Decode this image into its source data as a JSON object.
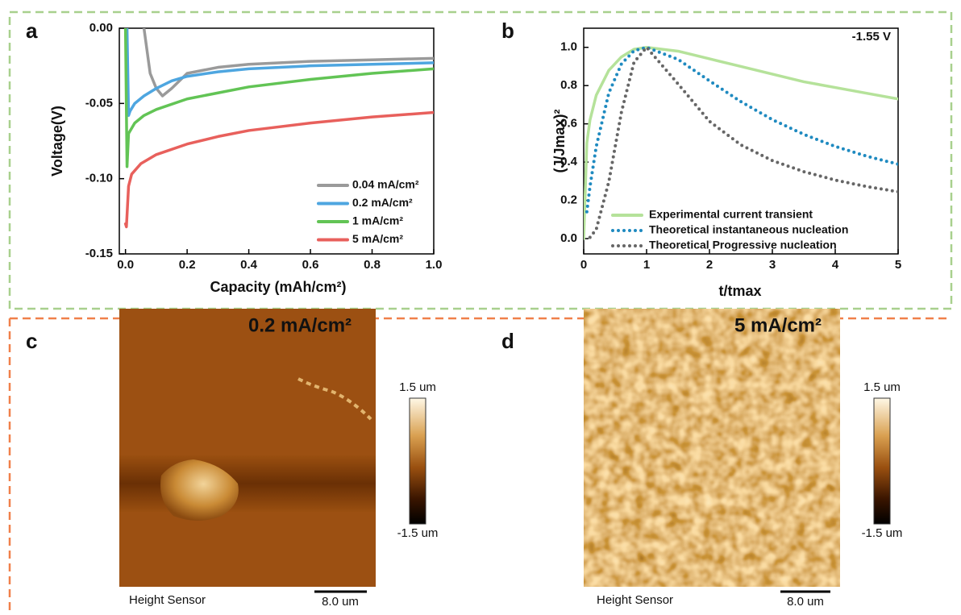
{
  "chart_data": [
    {
      "type": "line",
      "panel_label": "a",
      "x_label": "Capacity (mAh/cm²)",
      "y_label": "Voltage(V)",
      "xlim": [
        -0.02,
        1.0
      ],
      "ylim": [
        -0.15,
        0
      ],
      "xticks": [
        {
          "value": 0,
          "label": "0.0"
        },
        0.2,
        0.4,
        0.6,
        0.8,
        {
          "value": 1,
          "label": "1.0"
        }
      ],
      "yticks": [
        {
          "value": 0,
          "label": "0.00"
        },
        {
          "value": -0.05,
          "label": "-0.05"
        },
        {
          "value": -0.1,
          "label": "-0.10"
        },
        {
          "value": -0.15,
          "label": "-0.15"
        }
      ],
      "legend": "lower right",
      "series": [
        {
          "name": "0.04 mA/cm²",
          "color": "#9a9a9a",
          "style": "solid",
          "x": [
            0.06,
            0.08,
            0.1,
            0.12,
            0.15,
            0.2,
            0.3,
            0.4,
            0.6,
            0.8,
            1.0
          ],
          "values": [
            0,
            -0.03,
            -0.04,
            -0.045,
            -0.04,
            -0.03,
            -0.026,
            -0.024,
            -0.022,
            -0.021,
            -0.02
          ]
        },
        {
          "name": "0.2 mA/cm²",
          "color": "#4ea6e0",
          "style": "solid",
          "x": [
            0.005,
            0.01,
            0.015,
            0.03,
            0.06,
            0.1,
            0.15,
            0.2,
            0.3,
            0.4,
            0.6,
            0.8,
            1.0
          ],
          "values": [
            0,
            -0.058,
            -0.055,
            -0.05,
            -0.045,
            -0.04,
            -0.035,
            -0.032,
            -0.029,
            -0.027,
            -0.025,
            -0.024,
            -0.023
          ]
        },
        {
          "name": "1 mA/cm²",
          "color": "#62c455",
          "style": "solid",
          "x": [
            0,
            0.005,
            0.01,
            0.03,
            0.06,
            0.1,
            0.2,
            0.3,
            0.4,
            0.6,
            0.8,
            1.0
          ],
          "values": [
            0,
            -0.092,
            -0.07,
            -0.063,
            -0.058,
            -0.054,
            -0.047,
            -0.043,
            -0.039,
            -0.034,
            -0.03,
            -0.027
          ]
        },
        {
          "name": "5 mA/cm²",
          "color": "#e8605c",
          "style": "solid",
          "x": [
            0,
            0.003,
            0.01,
            0.02,
            0.05,
            0.1,
            0.2,
            0.3,
            0.4,
            0.6,
            0.8,
            1.0
          ],
          "values": [
            -0.13,
            -0.132,
            -0.105,
            -0.097,
            -0.09,
            -0.084,
            -0.077,
            -0.072,
            -0.068,
            -0.063,
            -0.059,
            -0.056
          ]
        }
      ]
    },
    {
      "type": "line",
      "panel_label": "b",
      "x_label": "t/tmax",
      "y_label": "(J/Jmax)²",
      "annotation": "-1.55 V",
      "xlim": [
        0,
        5
      ],
      "ylim": [
        -0.08,
        1.1
      ],
      "xticks": [
        0,
        1,
        2,
        3,
        4,
        5
      ],
      "yticks": [
        {
          "value": 0,
          "label": "0.0"
        },
        0.2,
        0.4,
        0.6,
        0.8,
        {
          "value": 1,
          "label": "1.0"
        }
      ],
      "legend": "lower right",
      "series": [
        {
          "name": "Experimental current transient",
          "color": "#b5e29a",
          "style": "solid",
          "x": [
            0,
            0.05,
            0.1,
            0.2,
            0.4,
            0.6,
            0.8,
            1,
            1.5,
            2,
            2.5,
            3,
            3.5,
            4,
            4.5,
            5
          ],
          "values": [
            0,
            0.5,
            0.62,
            0.75,
            0.88,
            0.95,
            0.99,
            1,
            0.98,
            0.94,
            0.9,
            0.86,
            0.82,
            0.79,
            0.76,
            0.73
          ]
        },
        {
          "name": "Theoretical instantaneous nucleation",
          "color": "#1f8ac0",
          "style": "dotted",
          "x": [
            0.05,
            0.1,
            0.2,
            0.4,
            0.6,
            0.8,
            1,
            1.5,
            2,
            2.5,
            3,
            3.5,
            4,
            4.5,
            5
          ],
          "values": [
            0.14,
            0.272,
            0.482,
            0.762,
            0.913,
            0.982,
            1.0,
            0.937,
            0.825,
            0.716,
            0.622,
            0.545,
            0.482,
            0.431,
            0.389
          ]
        },
        {
          "name": "Theoretical Progressive nucleation",
          "color": "#666666",
          "style": "dotted",
          "x": [
            0.1,
            0.2,
            0.4,
            0.6,
            0.8,
            1,
            1.5,
            2,
            2.5,
            3,
            3.5,
            4,
            4.5,
            5
          ],
          "values": [
            0.0065,
            0.0488,
            0.298,
            0.661,
            0.922,
            1.0,
            0.809,
            0.613,
            0.49,
            0.408,
            0.35,
            0.306,
            0.272,
            0.245
          ]
        }
      ]
    }
  ],
  "images": [
    {
      "panel_label": "c",
      "title": "0.2 mA/cm²",
      "colorbar_max": "1.5 um",
      "colorbar_min": "-1.5 um",
      "caption": "Height Sensor",
      "scale_bar": "8.0 um"
    },
    {
      "panel_label": "d",
      "title": "5 mA/cm²",
      "colorbar_max": "1.5 um",
      "colorbar_min": "-1.5 um",
      "caption": "Height Sensor",
      "scale_bar": "8.0 um"
    }
  ]
}
